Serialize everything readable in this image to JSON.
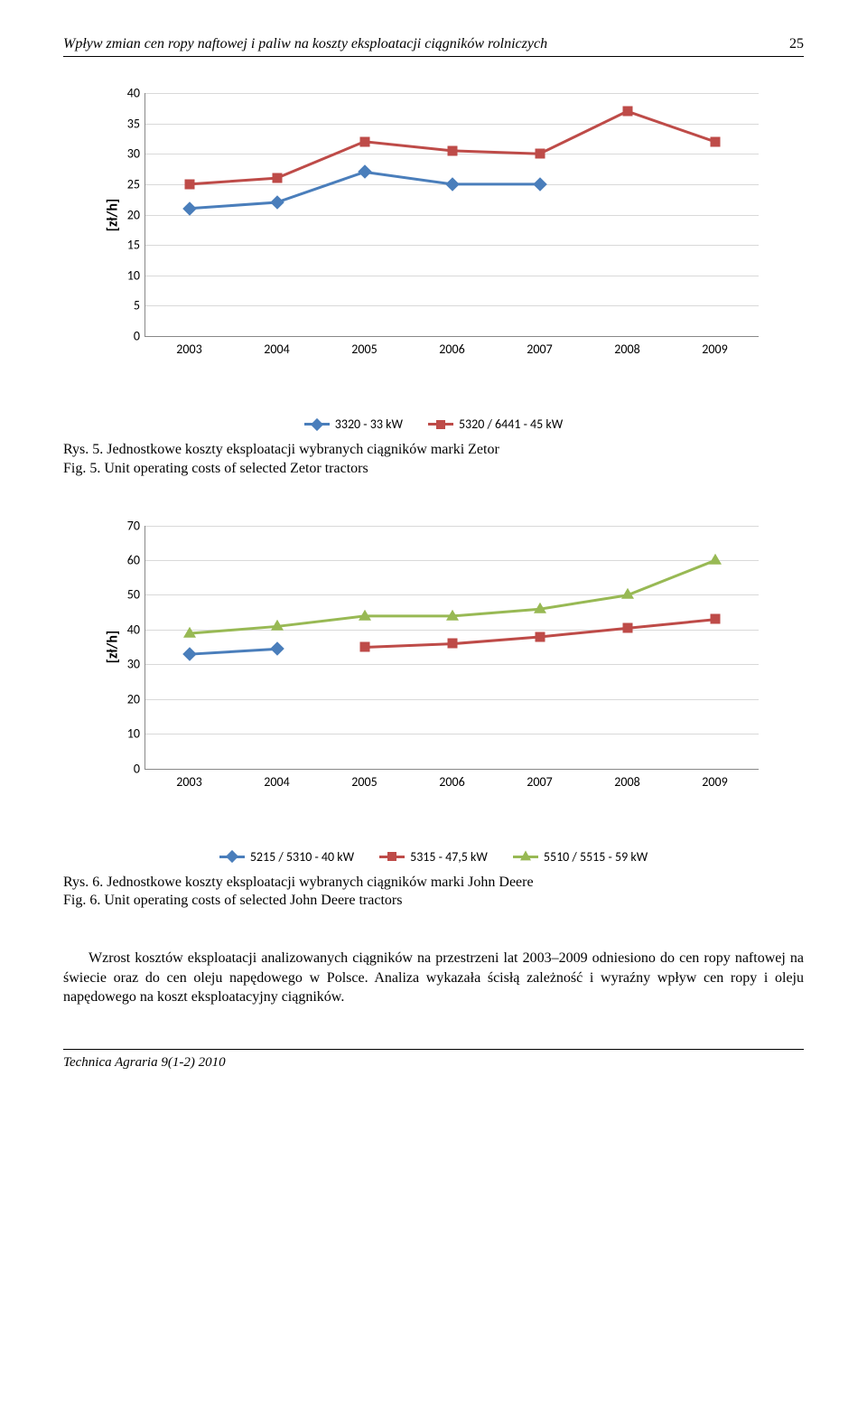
{
  "header": {
    "title": "Wpływ zmian cen ropy naftowej i paliw na koszty eksploatacji ciągników rolniczych",
    "page_number": "25"
  },
  "chart1": {
    "type": "line",
    "ylabel": "[zł/h]",
    "categories": [
      "2003",
      "2004",
      "2005",
      "2006",
      "2007",
      "2008",
      "2009"
    ],
    "ylim": [
      0,
      40
    ],
    "ytick_step": 5,
    "series": [
      {
        "name": "3320 - 33 kW",
        "color": "#4a7ebb",
        "marker": "diamond",
        "values": [
          21,
          22,
          27,
          25,
          25,
          null,
          null
        ]
      },
      {
        "name": "5320 / 6441 - 45 kW",
        "color": "#be4b48",
        "marker": "square",
        "values": [
          25,
          26,
          32,
          30.5,
          30,
          37,
          32
        ]
      }
    ],
    "grid_color": "#d9d9d9",
    "background_color": "#ffffff",
    "title_fontfamily": "Calibri",
    "label_fontsize": 14
  },
  "caption1": {
    "line1": "Rys. 5. Jednostkowe koszty eksploatacji wybranych ciągników marki Zetor",
    "line2": "Fig. 5. Unit operating costs of selected Zetor tractors"
  },
  "chart2": {
    "type": "line",
    "ylabel": "[zł/h]",
    "categories": [
      "2003",
      "2004",
      "2005",
      "2006",
      "2007",
      "2008",
      "2009"
    ],
    "ylim": [
      0,
      70
    ],
    "ytick_step": 10,
    "series": [
      {
        "name": "5215 / 5310 - 40 kW",
        "color": "#4a7ebb",
        "marker": "diamond",
        "values": [
          33,
          34.5,
          null,
          null,
          null,
          null,
          null
        ]
      },
      {
        "name": "5315 - 47,5 kW",
        "color": "#be4b48",
        "marker": "square",
        "values": [
          null,
          null,
          35,
          36,
          38,
          40.5,
          43
        ]
      },
      {
        "name": "5510 / 5515 - 59 kW",
        "color": "#98b954",
        "marker": "triangle",
        "values": [
          39,
          41,
          44,
          44,
          46,
          50,
          60
        ]
      }
    ],
    "grid_color": "#d9d9d9",
    "background_color": "#ffffff",
    "title_fontfamily": "Calibri",
    "label_fontsize": 14
  },
  "caption2": {
    "line1": "Rys. 6. Jednostkowe koszty eksploatacji wybranych ciągników marki John Deere",
    "line2": "Fig. 6. Unit operating costs of selected John Deere tractors"
  },
  "paragraph": "Wzrost kosztów eksploatacji analizowanych ciągników na przestrzeni lat 2003–2009 odniesiono do cen ropy naftowej na świecie oraz do cen oleju napędowego w Polsce. Analiza wykazała ścisłą zależność i wyraźny wpływ cen ropy i oleju napędowego na koszt eksploatacyjny ciągników.",
  "footer": "Technica Agraria 9(1-2) 2010"
}
